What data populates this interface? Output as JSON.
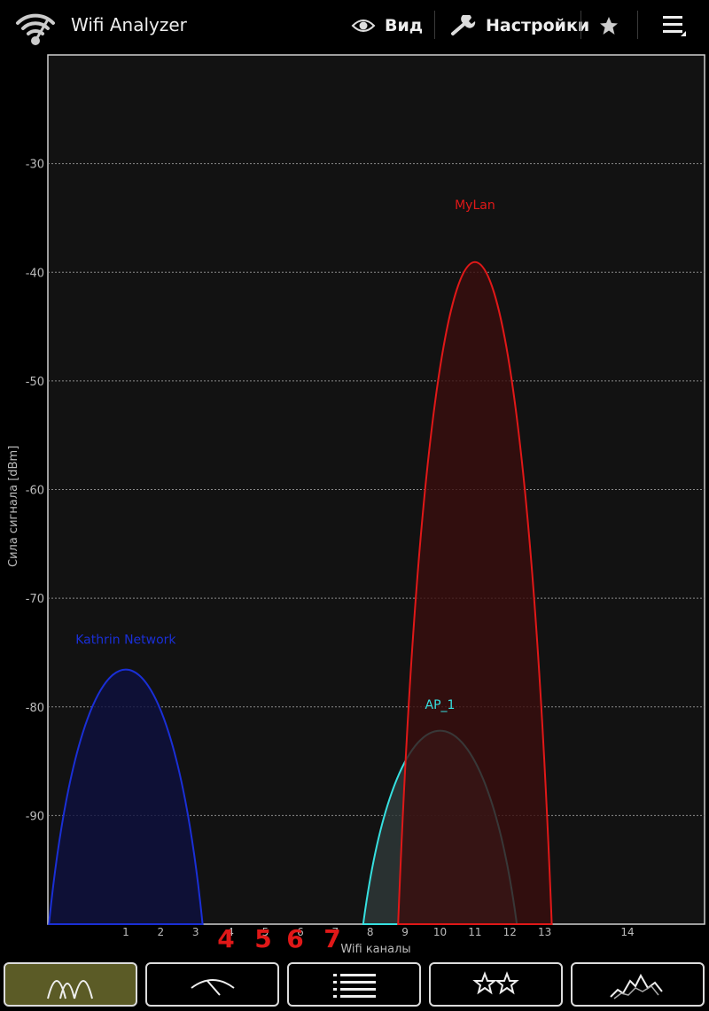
{
  "app": {
    "title": "Wifi Analyzer"
  },
  "actionbar": {
    "view_label": "Вид",
    "settings_label": "Настройки"
  },
  "colors": {
    "background": "#000000",
    "plot_bg": "#121212",
    "grid": "#8a8a8a",
    "tab_active": "#5b5b26",
    "annotation": "#e01818"
  },
  "chart_data": {
    "type": "area",
    "xlabel": "Wifi каналы",
    "ylabel": "Сила сигнала [dBm]",
    "ylim": [
      -100,
      -20
    ],
    "y_ticks": [
      -30,
      -40,
      -50,
      -60,
      -70,
      -80,
      -90
    ],
    "x_ticks": [
      "1",
      "2",
      "3",
      "4",
      "5",
      "6",
      "7",
      "8",
      "9",
      "10",
      "11",
      "12",
      "13",
      "14"
    ],
    "grid": true,
    "series": [
      {
        "name": "Kathrin Network",
        "channel": 1,
        "signal_dbm": -75,
        "color": "#1a2fd6",
        "fill": "#0e1040"
      },
      {
        "name": "MyLan",
        "channel": 11,
        "signal_dbm": -35,
        "color": "#e01818",
        "fill": "#3a0e0e"
      },
      {
        "name": "AP_1",
        "channel": 10,
        "signal_dbm": -81,
        "color": "#36e0e0",
        "fill": "#2f3a3a"
      }
    ],
    "annotations": [
      "4",
      "5",
      "6",
      "7"
    ]
  },
  "tabs": [
    {
      "icon": "channel-graph-icon",
      "active": true
    },
    {
      "icon": "signal-meter-icon",
      "active": false
    },
    {
      "icon": "ap-list-icon",
      "active": false
    },
    {
      "icon": "channel-rating-icon",
      "active": false
    },
    {
      "icon": "time-graph-icon",
      "active": false
    }
  ]
}
